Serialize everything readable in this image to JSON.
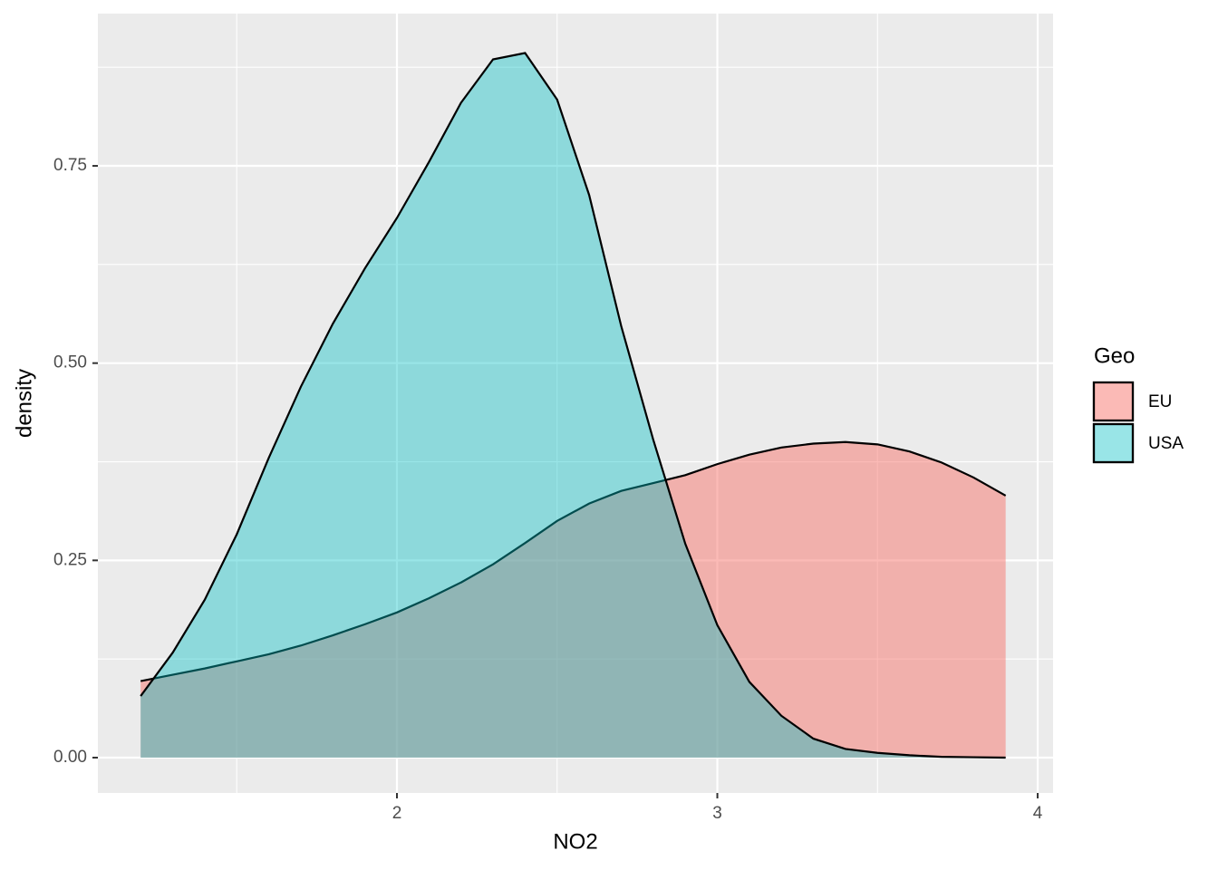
{
  "chart_data": {
    "type": "density",
    "x_label": "NO2",
    "y_label": "density",
    "legend_title": "Geo",
    "x": [
      1.2,
      1.3,
      1.4,
      1.5,
      1.6,
      1.7,
      1.8,
      1.9,
      2.0,
      2.1,
      2.2,
      2.3,
      2.4,
      2.5,
      2.6,
      2.7,
      2.8,
      2.9,
      3.0,
      3.1,
      3.2,
      3.3,
      3.4,
      3.5,
      3.6,
      3.7,
      3.8,
      3.9
    ],
    "series": [
      {
        "name": "EU",
        "color": "#F8766D",
        "values": [
          0.097,
          0.105,
          0.113,
          0.122,
          0.131,
          0.142,
          0.155,
          0.169,
          0.184,
          0.202,
          0.222,
          0.245,
          0.272,
          0.3,
          0.322,
          0.338,
          0.348,
          0.358,
          0.372,
          0.384,
          0.393,
          0.398,
          0.4,
          0.397,
          0.388,
          0.374,
          0.355,
          0.332
        ]
      },
      {
        "name": "USA",
        "color": "#00BFC4",
        "values": [
          0.078,
          0.133,
          0.2,
          0.283,
          0.38,
          0.47,
          0.55,
          0.62,
          0.684,
          0.755,
          0.83,
          0.885,
          0.893,
          0.834,
          0.713,
          0.547,
          0.403,
          0.271,
          0.168,
          0.096,
          0.053,
          0.024,
          0.011,
          0.006,
          0.003,
          0.001,
          0.0005,
          0
        ]
      }
    ],
    "xlim": [
      1.0665,
      4.048
    ],
    "ylim": [
      -0.0448,
      0.943
    ],
    "xticks": [
      2,
      3,
      4
    ],
    "yticks": [
      {
        "value": 0,
        "label": "0.00"
      },
      {
        "value": 0.25,
        "label": "0.25"
      },
      {
        "value": 0.5,
        "label": "0.50"
      },
      {
        "value": 0.75,
        "label": "0.75"
      }
    ],
    "grid": true,
    "legend_position": "right"
  }
}
